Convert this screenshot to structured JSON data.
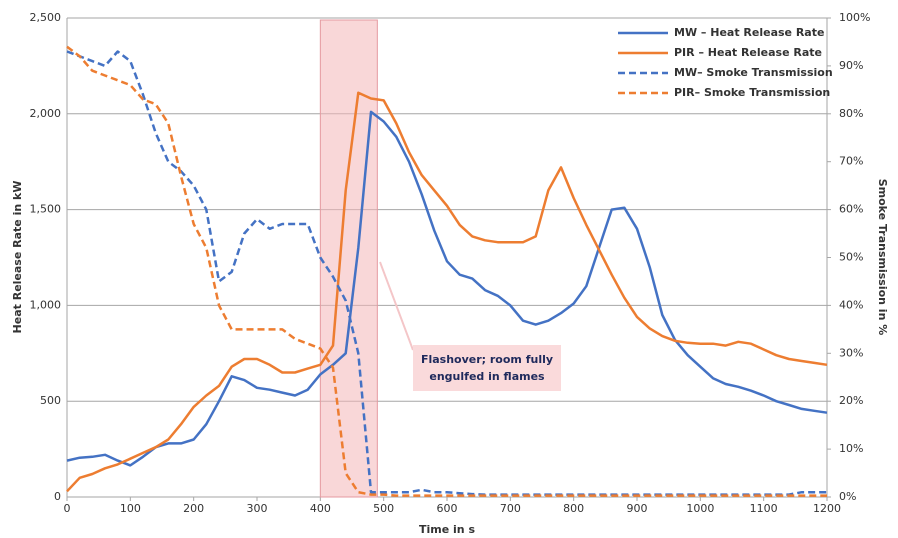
{
  "chart_data": {
    "type": "line",
    "y_label": "Heat Release Rate in kW",
    "y2_label": "Smoke Transmission in %",
    "x_label": "Time in s",
    "x": [
      0,
      20,
      40,
      60,
      80,
      100,
      120,
      140,
      160,
      180,
      200,
      220,
      240,
      260,
      280,
      300,
      320,
      340,
      360,
      380,
      400,
      420,
      440,
      460,
      480,
      500,
      520,
      540,
      560,
      580,
      600,
      620,
      640,
      660,
      680,
      700,
      720,
      740,
      760,
      780,
      800,
      820,
      840,
      860,
      880,
      900,
      920,
      940,
      960,
      980,
      1000,
      1020,
      1040,
      1060,
      1080,
      1100,
      1120,
      1140,
      1160,
      1180,
      1200
    ],
    "series": [
      {
        "name": "MW – Heat Release Rate",
        "color": "#4472c4",
        "dashed": false,
        "values": [
          190,
          205,
          210,
          220,
          190,
          165,
          210,
          260,
          280,
          280,
          300,
          380,
          500,
          630,
          610,
          570,
          560,
          545,
          530,
          560,
          640,
          690,
          750,
          1300,
          2010,
          1960,
          1880,
          1750,
          1580,
          1390,
          1230,
          1160,
          1140,
          1080,
          1050,
          1000,
          920,
          900,
          920,
          960,
          1010,
          1100,
          1300,
          1500,
          1510,
          1400,
          1200,
          950,
          820,
          740,
          680,
          620,
          590,
          575,
          555,
          530,
          500,
          480,
          460,
          450,
          440
        ]
      },
      {
        "name": "PIR – Heat Release Rate",
        "color": "#ed7d31",
        "dashed": false,
        "values": [
          30,
          100,
          120,
          150,
          170,
          200,
          230,
          260,
          300,
          380,
          470,
          530,
          580,
          680,
          720,
          720,
          690,
          650,
          650,
          670,
          690,
          790,
          1600,
          2110,
          2080,
          2070,
          1950,
          1800,
          1680,
          1600,
          1520,
          1420,
          1360,
          1340,
          1330,
          1330,
          1330,
          1360,
          1600,
          1720,
          1560,
          1420,
          1290,
          1160,
          1040,
          940,
          880,
          840,
          815,
          805,
          800,
          800,
          790,
          810,
          800,
          770,
          740,
          720,
          710,
          700,
          690
        ]
      },
      {
        "name": "MW– Smoke Transmission",
        "color": "#4472c4",
        "dashed": true,
        "axis": "y2",
        "values": [
          93,
          92,
          91,
          90,
          93,
          91,
          84,
          76,
          70,
          68,
          65,
          60,
          45,
          47,
          55,
          58,
          56,
          57,
          57,
          57,
          50,
          46,
          41,
          30,
          1,
          1,
          1,
          1,
          1.5,
          1,
          1,
          0.8,
          0.6,
          0.5,
          0.5,
          0.5,
          0.5,
          0.5,
          0.5,
          0.5,
          0.5,
          0.5,
          0.5,
          0.5,
          0.5,
          0.5,
          0.5,
          0.5,
          0.5,
          0.5,
          0.5,
          0.5,
          0.5,
          0.5,
          0.5,
          0.5,
          0.5,
          0.5,
          1,
          1,
          1
        ]
      },
      {
        "name": "PIR– Smoke Transmission",
        "color": "#ed7d31",
        "dashed": true,
        "axis": "y2",
        "values": [
          94,
          92,
          89,
          88,
          87,
          86,
          83,
          82,
          78,
          67,
          57,
          52,
          40,
          35,
          35,
          35,
          35,
          35,
          33,
          32,
          31,
          27,
          5,
          1,
          0.5,
          0.5,
          0.3,
          0.3,
          0.3,
          0.3,
          0.3,
          0.3,
          0.3,
          0.3,
          0.3,
          0.3,
          0.3,
          0.3,
          0.3,
          0.3,
          0.3,
          0.3,
          0.3,
          0.3,
          0.3,
          0.3,
          0.3,
          0.3,
          0.3,
          0.3,
          0.3,
          0.3,
          0.3,
          0.3,
          0.3,
          0.3,
          0.3,
          0.3,
          0.3,
          0.3,
          0.3
        ]
      }
    ],
    "xlim": [
      0,
      1200
    ],
    "xticks": [
      0,
      100,
      200,
      300,
      400,
      500,
      600,
      700,
      800,
      900,
      1000,
      1100,
      1200
    ],
    "ylim": [
      0,
      2500
    ],
    "yticks": [
      0,
      500,
      {
        "value": 1000,
        "label": "1,000"
      },
      {
        "value": 1500,
        "label": "1,500"
      },
      {
        "value": 2000,
        "label": "2,000"
      },
      {
        "value": 2500,
        "label": "2,500"
      }
    ],
    "y2lim": [
      0,
      100
    ],
    "y2ticks": [
      {
        "value": 0,
        "label": "0%"
      },
      {
        "value": 10,
        "label": "10%"
      },
      {
        "value": 20,
        "label": "20%"
      },
      {
        "value": 30,
        "label": "30%"
      },
      {
        "value": 40,
        "label": "40%"
      },
      {
        "value": 50,
        "label": "50%"
      },
      {
        "value": 60,
        "label": "60%"
      },
      {
        "value": 70,
        "label": "70%"
      },
      {
        "value": 80,
        "label": "80%"
      },
      {
        "value": 90,
        "label": "90%"
      },
      {
        "value": 100,
        "label": "100%"
      }
    ],
    "grid": true,
    "legend": "upper right",
    "highlight": {
      "x": [
        400,
        490
      ],
      "color": "#f4b6b8"
    },
    "annotation": {
      "lines": [
        "Flashover; room fully",
        "engulfed in flames"
      ]
    }
  }
}
